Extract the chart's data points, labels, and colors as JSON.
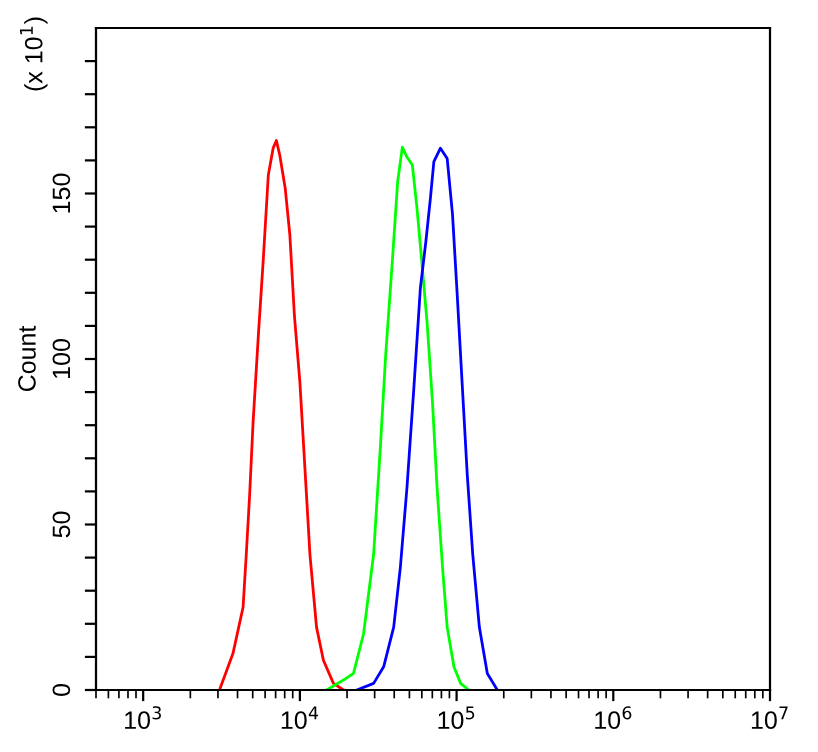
{
  "chart_data": {
    "type": "line",
    "ylabel": "Count",
    "annotations": [
      "(x 10$^{1}$)"
    ],
    "xlim": [
      500,
      10000000
    ],
    "xticks": [
      {
        "value": 1000,
        "label": "10$^{3}$"
      },
      {
        "value": 10000,
        "label": "10$^{4}$"
      },
      {
        "value": 100000,
        "label": "10$^{5}$"
      },
      {
        "value": 1000000,
        "label": "10$^{6}$"
      },
      {
        "value": 10000000,
        "label": "10$^{7}$"
      }
    ],
    "log": "x",
    "ylim": [
      0,
      200
    ],
    "yticks": [
      0,
      {
        "value": 10,
        "label": null
      },
      {
        "value": 20,
        "label": null
      },
      {
        "value": 30,
        "label": null
      },
      {
        "value": 40,
        "label": null
      },
      50,
      {
        "value": 60,
        "label": null
      },
      {
        "value": 70,
        "label": null
      },
      {
        "value": 80,
        "label": null
      },
      {
        "value": 90,
        "label": null
      },
      100,
      {
        "value": 110,
        "label": null
      },
      {
        "value": 120,
        "label": null
      },
      {
        "value": 130,
        "label": null
      },
      {
        "value": 140,
        "label": null
      },
      150,
      {
        "value": 160,
        "label": null
      },
      {
        "value": 170,
        "label": null
      },
      {
        "value": 180,
        "label": null
      },
      {
        "value": 190,
        "label": null
      }
    ],
    "grid": false,
    "legend": false,
    "series": [
      {
        "color": "#ff0000",
        "x": [
          3070,
          3740,
          4340,
          4550,
          4780,
          5030,
          5430,
          5830,
          6290,
          6750,
          7080,
          7440,
          8060,
          8630,
          9230,
          10000,
          10830,
          11590,
          12770,
          14130,
          16370,
          18980
        ],
        "values": [
          0,
          11,
          25,
          41,
          59,
          81,
          107,
          129.5,
          155.6,
          163.7,
          166,
          161.6,
          151.6,
          137.5,
          113,
          93,
          65,
          41,
          19,
          9,
          2,
          0
        ]
      },
      {
        "color": "#00ff00",
        "x": [
          14820,
          18980,
          21990,
          25490,
          29550,
          32590,
          35260,
          38900,
          42070,
          45080,
          48210,
          52210,
          55870,
          59950,
          64830,
          70150,
          75100,
          81340,
          87080,
          96170,
          106100,
          119400
        ],
        "values": [
          0,
          3,
          5,
          17,
          41,
          73,
          101,
          129.5,
          153.6,
          164,
          161,
          158.6,
          145.6,
          129.5,
          111,
          87,
          61,
          37,
          19,
          7,
          2,
          0
        ]
      },
      {
        "color": "#0000ff",
        "x": [
          23070,
          29550,
          34250,
          39690,
          43750,
          48210,
          53330,
          58750,
          63680,
          68080,
          71610,
          78890,
          87080,
          94210,
          100900,
          108400,
          117000,
          126800,
          139700,
          157100,
          182000
        ],
        "values": [
          0,
          2,
          7,
          19,
          37,
          61,
          91,
          121.5,
          135.5,
          148.6,
          159.6,
          163.7,
          160.6,
          143.6,
          119.5,
          93,
          65,
          41,
          19,
          5,
          0
        ]
      }
    ]
  }
}
